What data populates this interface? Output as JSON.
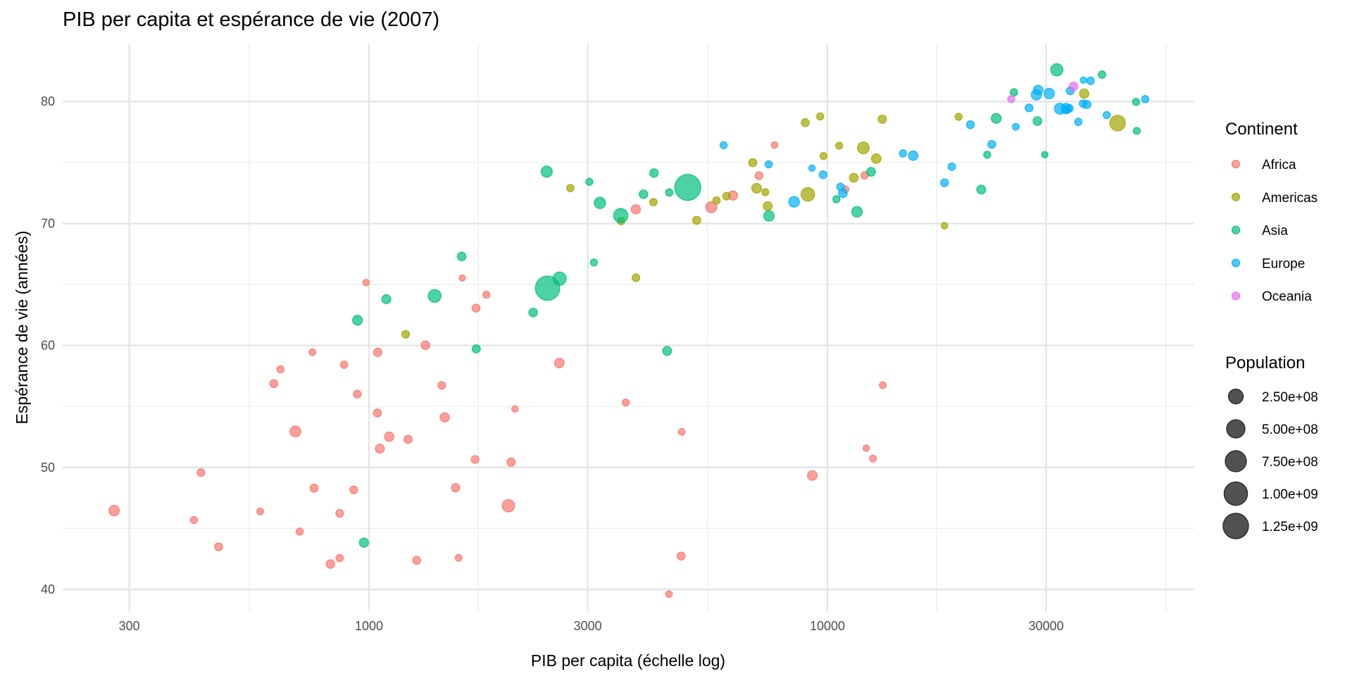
{
  "chart_data": {
    "type": "scatter",
    "title": "PIB per capita et espérance de vie (2007)",
    "xlabel": "PIB per capita (échelle log)",
    "ylabel": "Espérance de vie (années)",
    "x_scale": "log10",
    "xlim": [
      214,
      63000
    ],
    "ylim": [
      38.2,
      84.8
    ],
    "x_ticks": [
      300,
      1000,
      3000,
      10000,
      30000
    ],
    "x_tick_labels": [
      "300",
      "1000",
      "3000",
      "10000",
      "30000"
    ],
    "y_ticks": [
      40,
      50,
      60,
      70,
      80
    ],
    "y_tick_labels": [
      "40",
      "50",
      "60",
      "70",
      "80"
    ],
    "grid": true,
    "alpha": 0.7,
    "color_legend": {
      "title": "Continent",
      "placement": "right"
    },
    "size_legend": {
      "title": "Population",
      "placement": "right",
      "breaks": [
        250000000,
        500000000,
        750000000,
        1000000000,
        1250000000
      ],
      "labels": [
        "2.50e+08",
        "5.00e+08",
        "7.50e+08",
        "1.00e+09",
        "1.25e+09"
      ],
      "color": "#333333"
    },
    "size_range_pop": [
      199579,
      1318683096
    ],
    "point_format": [
      "gdp_per_capita",
      "life_expectancy",
      "population"
    ],
    "series": [
      {
        "name": "Africa",
        "color": "#F8766D",
        "points": [
          [
            6223,
            72.3,
            33333216
          ],
          [
            4797,
            42.73,
            12420476
          ],
          [
            1441,
            56.73,
            8078314
          ],
          [
            12570,
            50.73,
            1639131
          ],
          [
            1217,
            52.3,
            14326203
          ],
          [
            430,
            49.58,
            8390505
          ],
          [
            2042,
            50.43,
            17696293
          ],
          [
            706,
            44.74,
            4369038
          ],
          [
            1704,
            50.65,
            10238807
          ],
          [
            986,
            65.15,
            710960
          ],
          [
            278,
            46.46,
            64606759
          ],
          [
            3633,
            55.32,
            3800610
          ],
          [
            1545,
            48.33,
            18013409
          ],
          [
            2082,
            54.79,
            496374
          ],
          [
            5581,
            71.34,
            80264543
          ],
          [
            12154,
            51.58,
            551201
          ],
          [
            641,
            58.04,
            4906585
          ],
          [
            691,
            52.95,
            76511887
          ],
          [
            13206,
            56.74,
            1454867
          ],
          [
            753,
            59.45,
            1688359
          ],
          [
            1328,
            60.02,
            22873338
          ],
          [
            943,
            56.01,
            9947814
          ],
          [
            579,
            46.39,
            1472041
          ],
          [
            1463,
            54.11,
            35610177
          ],
          [
            1569,
            42.59,
            2012649
          ],
          [
            415,
            45.68,
            3193942
          ],
          [
            12057,
            73.95,
            6036914
          ],
          [
            1045,
            59.44,
            19167654
          ],
          [
            759,
            48.3,
            13327079
          ],
          [
            1043,
            54.47,
            12031795
          ],
          [
            1803,
            64.16,
            3270065
          ],
          [
            10957,
            72.8,
            1250882
          ],
          [
            3820,
            71.16,
            33757175
          ],
          [
            824,
            42.08,
            19951656
          ],
          [
            4811,
            52.91,
            2055080
          ],
          [
            620,
            56.87,
            12894865
          ],
          [
            2014,
            46.86,
            135031164
          ],
          [
            7670,
            76.44,
            798094
          ],
          [
            863,
            46.24,
            8860588
          ],
          [
            1598,
            65.53,
            199579
          ],
          [
            1712,
            63.06,
            12267493
          ],
          [
            863,
            42.57,
            6144562
          ],
          [
            926,
            48.16,
            9118773
          ],
          [
            9270,
            49.34,
            43997828
          ],
          [
            2602,
            58.56,
            42292929
          ],
          [
            4513,
            39.61,
            1133066
          ],
          [
            1107,
            52.52,
            38139640
          ],
          [
            883,
            58.42,
            5701579
          ],
          [
            7093,
            73.92,
            10276158
          ],
          [
            1056,
            51.54,
            29170398
          ],
          [
            1271,
            42.38,
            11746035
          ],
          [
            470,
            43.49,
            12311143
          ]
        ]
      },
      {
        "name": "Americas",
        "color": "#A3A500",
        "points": [
          [
            12779,
            75.32,
            40301927
          ],
          [
            3822,
            65.55,
            9119152
          ],
          [
            9066,
            72.39,
            190010647
          ],
          [
            36319,
            80.65,
            33390141
          ],
          [
            13172,
            78.55,
            16284741
          ],
          [
            7007,
            72.89,
            44227550
          ],
          [
            9645,
            78.78,
            4133884
          ],
          [
            8948,
            78.27,
            11416987
          ],
          [
            6025,
            72.24,
            9319622
          ],
          [
            6873,
            74.99,
            13755680
          ],
          [
            5728,
            71.88,
            6939688
          ],
          [
            5186,
            70.26,
            12572928
          ],
          [
            1202,
            60.92,
            8502814
          ],
          [
            3548,
            70.2,
            7483763
          ],
          [
            7321,
            72.57,
            2780132
          ],
          [
            11978,
            76.2,
            108700891
          ],
          [
            2749,
            72.9,
            5675356
          ],
          [
            9809,
            75.54,
            3242173
          ],
          [
            4173,
            71.75,
            6667147
          ],
          [
            7409,
            71.42,
            28674757
          ],
          [
            19329,
            78.75,
            3942491
          ],
          [
            18009,
            69.82,
            1056608
          ],
          [
            42952,
            78.24,
            301139947
          ],
          [
            10611,
            76.38,
            3447496
          ],
          [
            11416,
            73.75,
            26084662
          ]
        ]
      },
      {
        "name": "Asia",
        "color": "#00BF7D",
        "points": [
          [
            975,
            43.83,
            31889923
          ],
          [
            29796,
            75.64,
            708573
          ],
          [
            1391,
            64.06,
            150448339
          ],
          [
            1714,
            59.72,
            14131858
          ],
          [
            4959,
            72.96,
            1318683096
          ],
          [
            39725,
            82.21,
            6980412
          ],
          [
            2452,
            64.7,
            1110396331
          ],
          [
            3541,
            70.65,
            223547000
          ],
          [
            11606,
            70.96,
            69453570
          ],
          [
            4471,
            59.55,
            27499638
          ],
          [
            25523,
            80.75,
            6426679
          ],
          [
            31656,
            82.6,
            127467972
          ],
          [
            4519,
            72.54,
            6053193
          ],
          [
            1593,
            67.3,
            23301725
          ],
          [
            23348,
            78.62,
            49044790
          ],
          [
            47307,
            77.59,
            2505559
          ],
          [
            10461,
            71.99,
            3921278
          ],
          [
            12452,
            74.24,
            24821286
          ],
          [
            3096,
            66.8,
            2874127
          ],
          [
            944,
            62.07,
            47761980
          ],
          [
            1091,
            63.79,
            28901790
          ],
          [
            22316,
            75.64,
            3204897
          ],
          [
            2606,
            65.48,
            169270617
          ],
          [
            3190,
            71.69,
            91077287
          ],
          [
            21655,
            72.78,
            27601038
          ],
          [
            47143,
            79.97,
            4553009
          ],
          [
            3970,
            72.4,
            20378239
          ],
          [
            4185,
            74.14,
            19314747
          ],
          [
            28718,
            78.4,
            23174294
          ],
          [
            7458,
            70.62,
            65068149
          ],
          [
            2442,
            74.25,
            85262356
          ],
          [
            3025,
            73.42,
            4018332
          ],
          [
            2281,
            62.7,
            22211743
          ]
        ]
      },
      {
        "name": "Europe",
        "color": "#00B0F6",
        "points": [
          [
            5937,
            76.42,
            3600523
          ],
          [
            36126,
            79.83,
            8199783
          ],
          [
            33693,
            79.44,
            10392226
          ],
          [
            7446,
            74.85,
            4552198
          ],
          [
            10681,
            73.0,
            7322858
          ],
          [
            14619,
            75.75,
            4493312
          ],
          [
            22833,
            76.49,
            10228744
          ],
          [
            35278,
            78.33,
            5468120
          ],
          [
            33207,
            79.31,
            5238460
          ],
          [
            30470,
            80.66,
            61083916
          ],
          [
            32170,
            79.41,
            82400996
          ],
          [
            27538,
            79.48,
            10706290
          ],
          [
            18009,
            73.34,
            9956108
          ],
          [
            36181,
            81.76,
            301931
          ],
          [
            40676,
            78.89,
            4109086
          ],
          [
            28570,
            80.55,
            58147733
          ],
          [
            9254,
            74.54,
            684736
          ],
          [
            36798,
            79.76,
            16570613
          ],
          [
            49357,
            80.2,
            4627926
          ],
          [
            15390,
            75.56,
            38518241
          ],
          [
            20510,
            78.1,
            10642836
          ],
          [
            10808,
            72.48,
            22276056
          ],
          [
            9787,
            74.0,
            10150265
          ],
          [
            18678,
            74.66,
            5447502
          ],
          [
            25768,
            77.93,
            2009245
          ],
          [
            28821,
            80.94,
            40448191
          ],
          [
            33860,
            80.88,
            9031088
          ],
          [
            37506,
            81.7,
            7554661
          ],
          [
            8458,
            71.78,
            71158647
          ],
          [
            33203,
            79.43,
            60776238
          ]
        ]
      },
      {
        "name": "Oceania",
        "color": "#E76BF3",
        "points": [
          [
            34435,
            81.24,
            20434176
          ],
          [
            25185,
            80.2,
            4115771
          ]
        ]
      }
    ]
  }
}
